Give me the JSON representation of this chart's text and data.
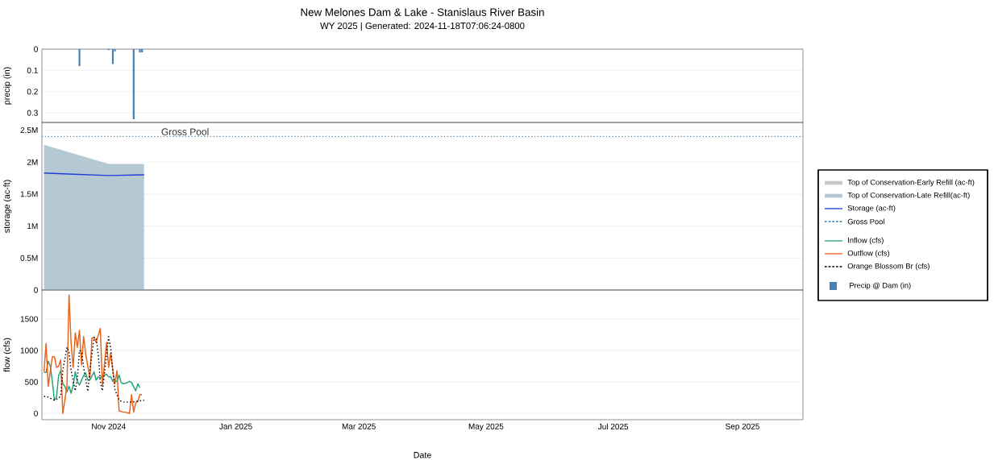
{
  "chart_data": [
    {
      "type": "bar",
      "title": "New Melones Dam & Lake - Stanislaus River Basin",
      "subtitle": "WY 2025 | Generated: 2024-11-18T07:06:24-0800",
      "ylabel": "precip (in)",
      "xlim": [
        "2024-09-30",
        "2025-09-30"
      ],
      "ylim": [
        0.345,
        0
      ],
      "yticks": [
        0,
        0.1,
        0.2,
        0.3
      ],
      "grid": "y",
      "tick_labels": "y",
      "legend": "right",
      "series": [
        {
          "name": "Precip @ Dam (in)",
          "color": "#4682b4",
          "x": [
            "2024-10-18",
            "2024-11-01",
            "2024-11-03",
            "2024-11-04",
            "2024-11-13",
            "2024-11-16",
            "2024-11-17"
          ],
          "values": [
            0.08,
            0.005,
            0.07,
            0.01,
            0.33,
            0.015,
            0.015
          ]
        }
      ]
    },
    {
      "type": "area",
      "ylabel": "storage (ac-ft)",
      "xlim": [
        "2024-09-30",
        "2025-09-30"
      ],
      "ylim": [
        0,
        2620000
      ],
      "yticks": [
        {
          "value": 0,
          "label": "0"
        },
        {
          "value": 500000,
          "label": "0.5M"
        },
        {
          "value": 1000000,
          "label": "1M"
        },
        {
          "value": 1500000,
          "label": "1.5M"
        },
        {
          "value": 2000000,
          "label": "2M"
        },
        {
          "value": 2500000,
          "label": "2.5M"
        }
      ],
      "grid": "y",
      "tick_labels": "y",
      "legend": "right",
      "series": [
        {
          "name": "Top of Conservation-Early Refill (ac-ft)",
          "color": "#c8c8c8"
        },
        {
          "name": "Top of Conservation-Late Refill(ac-ft)",
          "color": "#b4c9d4",
          "x": [
            "2024-10-01",
            "2024-11-01",
            "2024-11-18"
          ],
          "values": [
            2270000,
            1970000,
            1970000
          ]
        },
        {
          "name": "Storage (ac-ft)",
          "type": "line",
          "color": "#1f3fd6",
          "x": [
            "2024-10-01",
            "2024-10-15",
            "2024-11-01",
            "2024-11-18"
          ],
          "values": [
            1830000,
            1810000,
            1790000,
            1800000
          ]
        }
      ],
      "ref_lines": [
        {
          "axis": "y",
          "value": 2400000,
          "label": "Gross Pool",
          "color": "#2a7fb0",
          "line_style": "dotted"
        }
      ]
    },
    {
      "type": "line",
      "xlabel": "Date",
      "ylabel": "flow (cfs)",
      "xlim": [
        "2024-09-30",
        "2025-09-30"
      ],
      "ylim": [
        -100,
        1960
      ],
      "yticks": [
        0,
        500,
        1000,
        1500
      ],
      "xticks": [
        {
          "value": "2024-11-01",
          "label": "Nov 2024"
        },
        {
          "value": "2025-01-01",
          "label": "Jan 2025"
        },
        {
          "value": "2025-03-01",
          "label": "Mar 2025"
        },
        {
          "value": "2025-05-01",
          "label": "May 2025"
        },
        {
          "value": "2025-07-01",
          "label": "Jul 2025"
        },
        {
          "value": "2025-09-01",
          "label": "Sep 2025"
        }
      ],
      "grid": "y",
      "legend": "right",
      "series": [
        {
          "name": "Inflow (cfs)",
          "color": "#21a07a",
          "x": [
            "2024-10-01",
            "2024-10-02",
            "2024-10-03",
            "2024-10-04",
            "2024-10-05",
            "2024-10-06",
            "2024-10-07",
            "2024-10-08",
            "2024-10-09",
            "2024-10-10",
            "2024-10-11",
            "2024-10-12",
            "2024-10-13",
            "2024-10-14",
            "2024-10-15",
            "2024-10-16",
            "2024-10-17",
            "2024-10-18",
            "2024-10-19",
            "2024-10-20",
            "2024-10-21",
            "2024-10-22",
            "2024-10-23",
            "2024-10-25",
            "2024-10-26",
            "2024-10-27",
            "2024-10-28",
            "2024-10-29",
            "2024-10-31",
            "2024-11-01",
            "2024-11-02",
            "2024-11-03",
            "2024-11-05",
            "2024-11-06",
            "2024-11-07",
            "2024-11-08",
            "2024-11-10",
            "2024-11-11",
            "2024-11-12",
            "2024-11-14",
            "2024-11-15",
            "2024-11-16"
          ],
          "values": [
            650,
            650,
            830,
            750,
            510,
            210,
            260,
            600,
            680,
            470,
            430,
            340,
            430,
            320,
            450,
            660,
            510,
            450,
            530,
            600,
            640,
            530,
            530,
            660,
            530,
            580,
            560,
            600,
            620,
            580,
            580,
            510,
            510,
            610,
            490,
            470,
            490,
            510,
            490,
            360,
            470,
            410
          ]
        },
        {
          "name": "Outflow (cfs)",
          "color": "#e8631a",
          "x": [
            "2024-10-01",
            "2024-10-02",
            "2024-10-03",
            "2024-10-05",
            "2024-10-06",
            "2024-10-07",
            "2024-10-08",
            "2024-10-09",
            "2024-10-10",
            "2024-10-12",
            "2024-10-13",
            "2024-10-14",
            "2024-10-15",
            "2024-10-16",
            "2024-10-17",
            "2024-10-18",
            "2024-10-19",
            "2024-10-20",
            "2024-10-21",
            "2024-10-23",
            "2024-10-24",
            "2024-10-25",
            "2024-10-26",
            "2024-10-28",
            "2024-10-29",
            "2024-10-31",
            "2024-11-01",
            "2024-11-02",
            "2024-11-03",
            "2024-11-04",
            "2024-11-05",
            "2024-11-06",
            "2024-11-08",
            "2024-11-09",
            "2024-11-11",
            "2024-11-12",
            "2024-11-13",
            "2024-11-14",
            "2024-11-15",
            "2024-11-16",
            "2024-11-17"
          ],
          "values": [
            660,
            1110,
            430,
            900,
            900,
            730,
            750,
            850,
            0,
            430,
            1880,
            1110,
            730,
            1280,
            1050,
            1320,
            770,
            1220,
            940,
            560,
            1200,
            1200,
            1130,
            1350,
            450,
            1130,
            730,
            960,
            680,
            470,
            680,
            40,
            20,
            20,
            0,
            300,
            20,
            170,
            190,
            300,
            300
          ]
        },
        {
          "name": "Orange Blossom Br (cfs)",
          "color": "#000000",
          "line_style": "dotted",
          "x": [
            "2024-10-01",
            "2024-10-03",
            "2024-10-04",
            "2024-10-06",
            "2024-10-08",
            "2024-10-09",
            "2024-10-10",
            "2024-10-12",
            "2024-10-13",
            "2024-10-14",
            "2024-10-16",
            "2024-10-17",
            "2024-10-18",
            "2024-10-19",
            "2024-10-20",
            "2024-10-22",
            "2024-10-23",
            "2024-10-25",
            "2024-10-26",
            "2024-10-27",
            "2024-10-28",
            "2024-10-29",
            "2024-10-30",
            "2024-11-01",
            "2024-11-02",
            "2024-11-03",
            "2024-11-04",
            "2024-11-06",
            "2024-11-08",
            "2024-11-10",
            "2024-11-12",
            "2024-11-14",
            "2024-11-16",
            "2024-11-18"
          ],
          "values": [
            270,
            260,
            240,
            210,
            240,
            280,
            680,
            1050,
            980,
            680,
            360,
            560,
            1000,
            980,
            730,
            350,
            680,
            1210,
            1200,
            940,
            510,
            360,
            640,
            1220,
            1030,
            680,
            380,
            210,
            180,
            180,
            180,
            190,
            200,
            210
          ]
        }
      ]
    }
  ]
}
